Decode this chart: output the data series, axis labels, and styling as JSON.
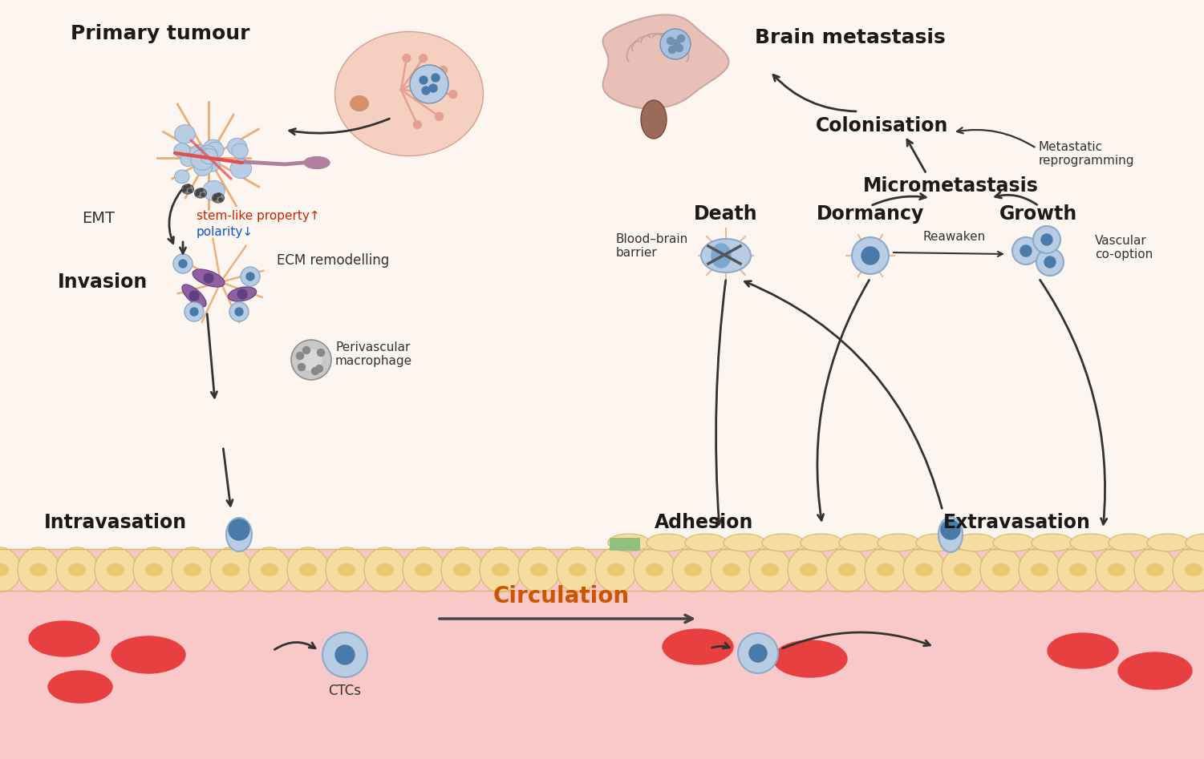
{
  "bg_color": "#fdf5f0",
  "vessel_fill": "#f9c8c8",
  "labels": {
    "primary_tumour": "Primary tumour",
    "emt": "EMT",
    "stem_like": "stem-like property↑",
    "polarity": "polarity↓",
    "ecm": "ECM remodelling",
    "invasion": "Invasion",
    "perivascular": "Perivascular\nmacrophage",
    "intravasation": "Intravasation",
    "ctcs": "CTCs",
    "circulation": "Circulation",
    "brain_metastasis": "Brain metastasis",
    "colonisation": "Colonisation",
    "metastatic": "Metastatic\nreprogramming",
    "micrometastasis": "Micrometastasis",
    "reawaken": "Reawaken",
    "death": "Death",
    "dormancy": "Dormancy",
    "growth": "Growth",
    "blood_brain": "Blood–brain\nbarrier",
    "vascular": "Vascular\nco-option",
    "adhesion": "Adhesion",
    "extravasation": "Extravasation"
  },
  "colors": {
    "bold_label": "#1a1a1a",
    "normal_label": "#333333",
    "stem_like_color": "#cc2200",
    "polarity_color": "#1155cc",
    "circulation_color": "#cc5500",
    "arrow_color": "#333333",
    "cell_blue_light": "#b8cce4",
    "cell_blue_mid": "#7ba7d0",
    "cell_blue_dark": "#4a7aaa",
    "red_cell": "#e84040",
    "green_patch": "#90c080",
    "orange_fiber": "#e8a060",
    "gray_macro": "#aaaaaa",
    "vessel_pink": "#f9c8c8",
    "vessel_yellow": "#f5dda0",
    "vessel_yellow_edge": "#d4b870",
    "vessel_yellow_inner": "#e8c870",
    "brain_pink": "#e8c0b8",
    "brain_brown": "#9b6b5a",
    "breast_fill": "#f5d0c0",
    "breast_edge": "#d4a090",
    "breast_duct": "#e4a090",
    "breast_nipple": "#d4906a",
    "spindle_cell": "#b080a0",
    "macro_light": "#c8c8c8",
    "macro_dark": "#888888",
    "death_cross": "#555555",
    "fiber_blue": "#7ab0d0"
  }
}
